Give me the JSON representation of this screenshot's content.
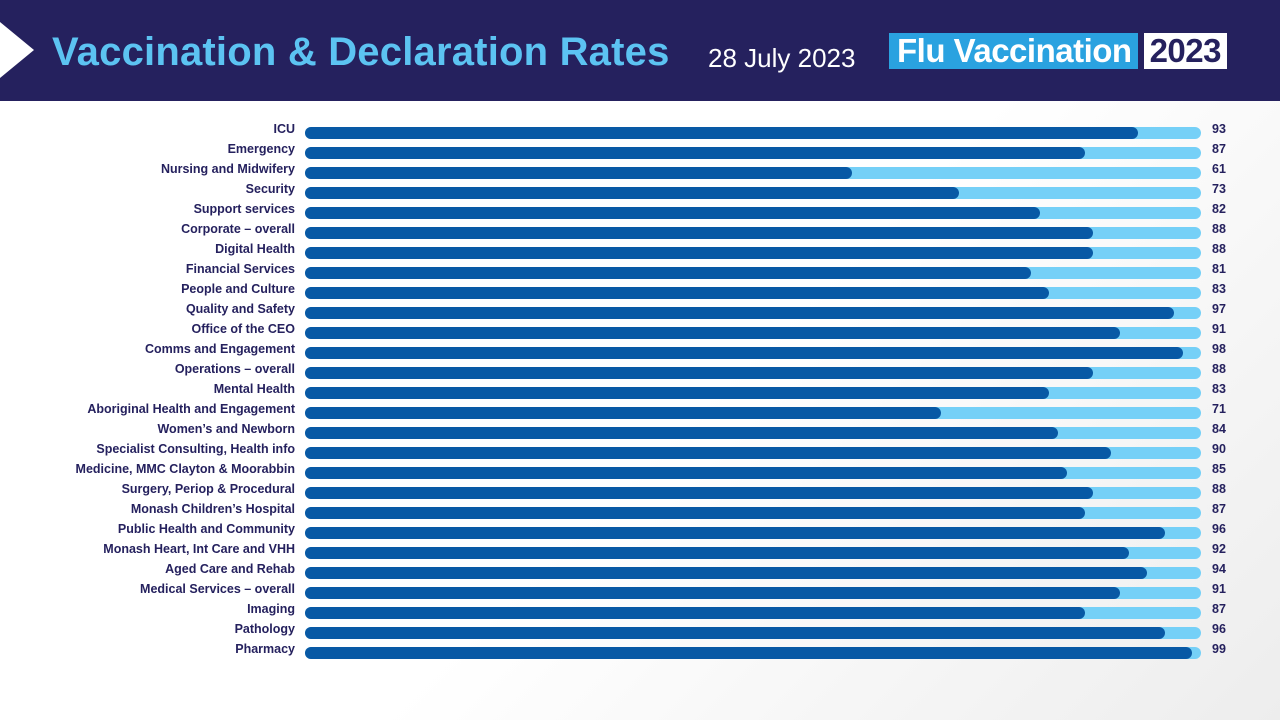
{
  "header": {
    "title": "Vaccination & Declaration Rates",
    "date": "28 July 2023",
    "logo_text": "Flu Vaccination",
    "logo_year": "2023"
  },
  "colors": {
    "header_bg": "#25215e",
    "title": "#5cc3f2",
    "bar_fill": "#0859a5",
    "bar_track": "#75d0f7",
    "logo_accent": "#2aa2e0"
  },
  "chart_data": {
    "type": "bar",
    "orientation": "horizontal",
    "xlim": [
      0,
      100
    ],
    "grid": false,
    "categories": [
      "ICU",
      "Emergency",
      "Nursing  and Midwifery",
      "Security",
      "Support services",
      "Corporate – overall",
      "Digital Health",
      "Financial Services",
      "People and Culture",
      "Quality and Safety",
      "Office of the CEO",
      "Comms and Engagement",
      "Operations – overall",
      "Mental Health",
      "Aboriginal Health and Engagement",
      "Women’s and Newborn",
      "Specialist Consulting,  Health info",
      "Medicine, MMC Clayton & Moorabbin",
      "Surgery, Periop & Procedural",
      "Monash Children’s Hospital",
      "Public Health and Community",
      "Monash Heart, Int Care and VHH",
      "Aged Care and Rehab",
      "Medical Services – overall",
      "Imaging",
      "Pathology",
      "Pharmacy"
    ],
    "values": [
      93,
      87,
      61,
      73,
      82,
      88,
      88,
      81,
      83,
      97,
      91,
      98,
      88,
      83,
      71,
      84,
      90,
      85,
      88,
      87,
      96,
      92,
      94,
      91,
      87,
      96,
      99
    ]
  }
}
